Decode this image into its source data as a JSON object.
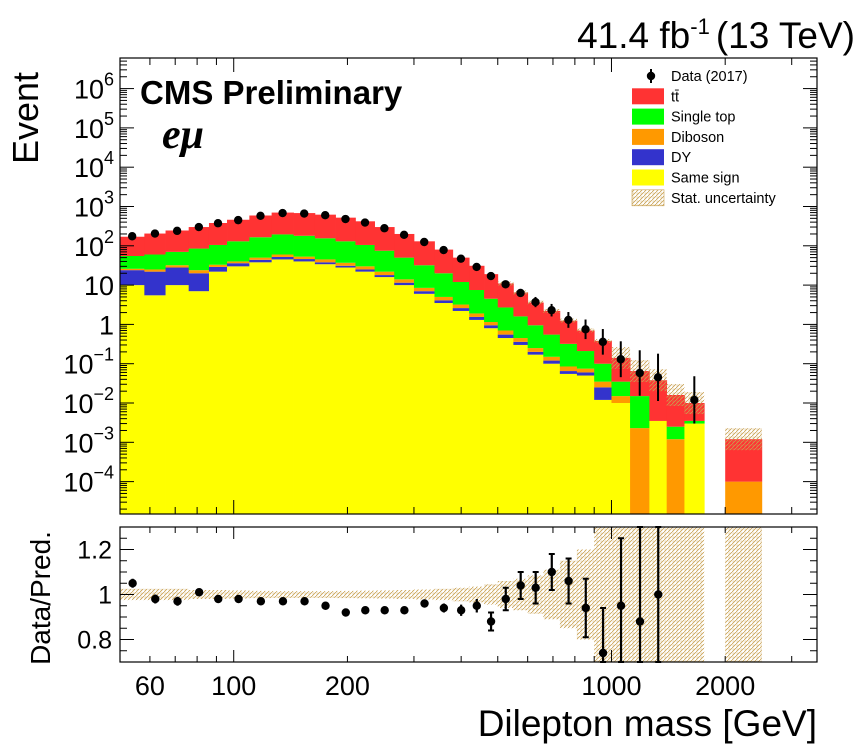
{
  "header": {
    "lumi_value": "41.4 fb",
    "lumi_exp": "-1",
    "lumi_energy": "(13 TeV)",
    "experiment": "CMS Preliminary",
    "channel": "eμ"
  },
  "colors": {
    "ttbar": "#ff3333",
    "single_top": "#00ff00",
    "diboson": "#ff9900",
    "dy": "#3333cc",
    "same_sign": "#ffff00",
    "uncertainty": "#c8a050",
    "data": "#000000"
  },
  "chart_data": [
    {
      "type": "bar",
      "subtype": "stacked-histogram",
      "xlabel": "",
      "ylabel": "Event",
      "xscale": "log",
      "yscale": "log",
      "xlim": [
        50,
        3500
      ],
      "ylim": [
        1.5e-05,
        6000000
      ],
      "xticks": [
        {
          "value": 60,
          "label": "60"
        },
        {
          "value": 100,
          "label": "100"
        },
        {
          "value": 200,
          "label": "200"
        },
        {
          "value": 1000,
          "label": "1000"
        },
        {
          "value": 2000,
          "label": "2000"
        }
      ],
      "yticks": [
        {
          "value": 0.0001,
          "base": "10",
          "exp": "−4"
        },
        {
          "value": 0.001,
          "base": "10",
          "exp": "−3"
        },
        {
          "value": 0.01,
          "base": "10",
          "exp": "−2"
        },
        {
          "value": 0.1,
          "base": "10",
          "exp": "−1"
        },
        {
          "value": 1,
          "base": "1",
          "exp": ""
        },
        {
          "value": 10,
          "base": "10",
          "exp": ""
        },
        {
          "value": 100,
          "base": "10",
          "exp": "2"
        },
        {
          "value": 1000,
          "base": "10",
          "exp": "3"
        },
        {
          "value": 10000,
          "base": "10",
          "exp": "4"
        },
        {
          "value": 100000,
          "base": "10",
          "exp": "5"
        },
        {
          "value": 1000000,
          "base": "10",
          "exp": "6"
        }
      ],
      "legend": {
        "placement": "top-right",
        "entries": [
          {
            "label": "Data (2017)",
            "style": "marker",
            "color": "#000000"
          },
          {
            "label": "tt̄",
            "style": "fill",
            "color": "#ff3333"
          },
          {
            "label": "Single top",
            "style": "fill",
            "color": "#00ff00"
          },
          {
            "label": "Diboson",
            "style": "fill",
            "color": "#ff9900"
          },
          {
            "label": "DY",
            "style": "fill",
            "color": "#3333cc"
          },
          {
            "label": "Same sign",
            "style": "fill",
            "color": "#ffff00"
          },
          {
            "label": "Stat. uncertainty",
            "style": "hatch",
            "color": "#c8a050"
          }
        ]
      },
      "bins": [
        {
          "lo": 50,
          "hi": 58,
          "same_sign": 10,
          "dy": 24,
          "diboson": 26,
          "single_top": 55,
          "ttbar": 170,
          "data": 175
        },
        {
          "lo": 58,
          "hi": 66,
          "same_sign": 5.5,
          "dy": 22,
          "diboson": 25,
          "single_top": 60,
          "ttbar": 205,
          "data": 205
        },
        {
          "lo": 66,
          "hi": 76,
          "same_sign": 10,
          "dy": 28,
          "diboson": 32,
          "single_top": 70,
          "ttbar": 245,
          "data": 240
        },
        {
          "lo": 76,
          "hi": 86,
          "same_sign": 7,
          "dy": 20,
          "diboson": 24,
          "single_top": 85,
          "ttbar": 300,
          "data": 300
        },
        {
          "lo": 86,
          "hi": 96,
          "same_sign": 22,
          "dy": 29,
          "diboson": 33,
          "single_top": 105,
          "ttbar": 380,
          "data": 375
        },
        {
          "lo": 96,
          "hi": 110,
          "same_sign": 30,
          "dy": 36,
          "diboson": 40,
          "single_top": 130,
          "ttbar": 460,
          "data": 450
        },
        {
          "lo": 110,
          "hi": 126,
          "same_sign": 38,
          "dy": 44,
          "diboson": 50,
          "single_top": 165,
          "ttbar": 590,
          "data": 580
        },
        {
          "lo": 126,
          "hi": 144,
          "same_sign": 45,
          "dy": 52,
          "diboson": 60,
          "single_top": 195,
          "ttbar": 700,
          "data": 680
        },
        {
          "lo": 144,
          "hi": 164,
          "same_sign": 40,
          "dy": 46,
          "diboson": 53,
          "single_top": 180,
          "ttbar": 680,
          "data": 660
        },
        {
          "lo": 164,
          "hi": 186,
          "same_sign": 34,
          "dy": 38,
          "diboson": 45,
          "single_top": 155,
          "ttbar": 620,
          "data": 600
        },
        {
          "lo": 186,
          "hi": 210,
          "same_sign": 28,
          "dy": 31,
          "diboson": 37,
          "single_top": 130,
          "ttbar": 520,
          "data": 480
        },
        {
          "lo": 210,
          "hi": 236,
          "same_sign": 22,
          "dy": 25,
          "diboson": 30,
          "single_top": 105,
          "ttbar": 420,
          "data": 390
        },
        {
          "lo": 236,
          "hi": 266,
          "same_sign": 16,
          "dy": 18,
          "diboson": 22,
          "single_top": 75,
          "ttbar": 300,
          "data": 280
        },
        {
          "lo": 266,
          "hi": 300,
          "same_sign": 10,
          "dy": 11.5,
          "diboson": 14,
          "single_top": 50,
          "ttbar": 200,
          "data": 190
        },
        {
          "lo": 300,
          "hi": 340,
          "same_sign": 6,
          "dy": 7,
          "diboson": 8.5,
          "single_top": 32,
          "ttbar": 130,
          "data": 125
        },
        {
          "lo": 340,
          "hi": 380,
          "same_sign": 3.5,
          "dy": 4.1,
          "diboson": 5,
          "single_top": 20,
          "ttbar": 80,
          "data": 78
        },
        {
          "lo": 380,
          "hi": 420,
          "same_sign": 2.2,
          "dy": 2.6,
          "diboson": 3.2,
          "single_top": 12,
          "ttbar": 50,
          "data": 47
        },
        {
          "lo": 420,
          "hi": 460,
          "same_sign": 1.3,
          "dy": 1.55,
          "diboson": 1.9,
          "single_top": 7.5,
          "ttbar": 31,
          "data": 29
        },
        {
          "lo": 460,
          "hi": 500,
          "same_sign": 0.8,
          "dy": 0.95,
          "diboson": 1.15,
          "single_top": 4.5,
          "ttbar": 19,
          "data": 17
        },
        {
          "lo": 500,
          "hi": 550,
          "same_sign": 0.45,
          "dy": 0.55,
          "diboson": 0.7,
          "single_top": 2.7,
          "ttbar": 11,
          "data": 10.5
        },
        {
          "lo": 550,
          "hi": 600,
          "same_sign": 0.3,
          "dy": 0.36,
          "diboson": 0.45,
          "single_top": 1.6,
          "ttbar": 6.5,
          "data": 6.3
        },
        {
          "lo": 600,
          "hi": 660,
          "same_sign": 0.17,
          "dy": 0.2,
          "diboson": 0.25,
          "single_top": 0.95,
          "ttbar": 3.6,
          "data": 3.7
        },
        {
          "lo": 660,
          "hi": 730,
          "same_sign": 0.1,
          "dy": 0.12,
          "diboson": 0.15,
          "single_top": 0.55,
          "ttbar": 2.2,
          "data": 2.3
        },
        {
          "lo": 730,
          "hi": 810,
          "same_sign": 0.055,
          "dy": 0.065,
          "diboson": 0.085,
          "single_top": 0.32,
          "ttbar": 1.25,
          "data": 1.3
        },
        {
          "lo": 810,
          "hi": 900,
          "same_sign": 0.05,
          "dy": 0.06,
          "diboson": 0.075,
          "single_top": 0.21,
          "ttbar": 0.7,
          "data": 0.75
        },
        {
          "lo": 900,
          "hi": 1000,
          "same_sign": 0.012,
          "dy": 0.025,
          "diboson": 0.035,
          "single_top": 0.1,
          "ttbar": 0.38,
          "data": 0.36
        },
        {
          "lo": 1000,
          "hi": 1120,
          "same_sign": 0.01,
          "dy": 0.01,
          "diboson": 0.015,
          "single_top": 0.035,
          "ttbar": 0.14,
          "data": 0.13
        },
        {
          "lo": 1120,
          "hi": 1260,
          "same_sign": 0,
          "dy": 0,
          "diboson": 0.0023,
          "single_top": 0.015,
          "ttbar": 0.065,
          "data": 0.058
        },
        {
          "lo": 1260,
          "hi": 1400,
          "same_sign": 0.0035,
          "dy": 0.0035,
          "diboson": 0.0035,
          "single_top": 0.0035,
          "ttbar": 0.038,
          "data": 0.045
        },
        {
          "lo": 1400,
          "hi": 1560,
          "same_sign": 0,
          "dy": 0,
          "diboson": 0.0012,
          "single_top": 0.0025,
          "ttbar": 0.016,
          "data": null
        },
        {
          "lo": 1560,
          "hi": 1760,
          "same_sign": 0.003,
          "dy": 0.003,
          "diboson": 0.003,
          "single_top": 0.0035,
          "ttbar": 0.01,
          "data": 0.012
        },
        {
          "lo": 1760,
          "hi": 2000,
          "same_sign": 0,
          "dy": 0,
          "diboson": 0,
          "single_top": 0,
          "ttbar": 0,
          "data": null
        },
        {
          "lo": 2000,
          "hi": 2500,
          "same_sign": 0,
          "dy": 0,
          "diboson": 0.0001,
          "single_top": 0.0001,
          "ttbar": 0.0012,
          "data": null
        },
        {
          "lo": 2500,
          "hi": 3500,
          "same_sign": 0,
          "dy": 0,
          "diboson": 0,
          "single_top": 0,
          "ttbar": 0,
          "data": null
        }
      ]
    },
    {
      "type": "scatter",
      "subtype": "ratio",
      "xlabel": "Dilepton mass [GeV]",
      "ylabel": "Data/Pred.",
      "xscale": "log",
      "xlim": [
        50,
        3500
      ],
      "ylim": [
        0.7,
        1.3
      ],
      "yticks": [
        {
          "value": 0.8,
          "label": "0.8"
        },
        {
          "value": 1.0,
          "label": "1"
        },
        {
          "value": 1.2,
          "label": "1.2"
        }
      ],
      "points": [
        {
          "x": 54,
          "y": 1.05,
          "err": 0.02,
          "unc": 0.025
        },
        {
          "x": 62,
          "y": 0.98,
          "err": 0.02,
          "unc": 0.025
        },
        {
          "x": 71,
          "y": 0.97,
          "err": 0.02,
          "unc": 0.025
        },
        {
          "x": 81,
          "y": 1.01,
          "err": 0.015,
          "unc": 0.02
        },
        {
          "x": 91,
          "y": 0.98,
          "err": 0.012,
          "unc": 0.02
        },
        {
          "x": 103,
          "y": 0.98,
          "err": 0.01,
          "unc": 0.018
        },
        {
          "x": 118,
          "y": 0.97,
          "err": 0.008,
          "unc": 0.016
        },
        {
          "x": 135,
          "y": 0.97,
          "err": 0.008,
          "unc": 0.015
        },
        {
          "x": 154,
          "y": 0.97,
          "err": 0.008,
          "unc": 0.015
        },
        {
          "x": 175,
          "y": 0.95,
          "err": 0.008,
          "unc": 0.015
        },
        {
          "x": 198,
          "y": 0.92,
          "err": 0.01,
          "unc": 0.016
        },
        {
          "x": 223,
          "y": 0.93,
          "err": 0.01,
          "unc": 0.017
        },
        {
          "x": 251,
          "y": 0.93,
          "err": 0.012,
          "unc": 0.018
        },
        {
          "x": 283,
          "y": 0.93,
          "err": 0.014,
          "unc": 0.02
        },
        {
          "x": 320,
          "y": 0.96,
          "err": 0.016,
          "unc": 0.022
        },
        {
          "x": 360,
          "y": 0.94,
          "err": 0.02,
          "unc": 0.025
        },
        {
          "x": 400,
          "y": 0.93,
          "err": 0.025,
          "unc": 0.03
        },
        {
          "x": 440,
          "y": 0.95,
          "err": 0.03,
          "unc": 0.035
        },
        {
          "x": 480,
          "y": 0.88,
          "err": 0.04,
          "unc": 0.045
        },
        {
          "x": 525,
          "y": 0.98,
          "err": 0.05,
          "unc": 0.06
        },
        {
          "x": 575,
          "y": 1.04,
          "err": 0.06,
          "unc": 0.07
        },
        {
          "x": 630,
          "y": 1.03,
          "err": 0.07,
          "unc": 0.085
        },
        {
          "x": 695,
          "y": 1.1,
          "err": 0.08,
          "unc": 0.11
        },
        {
          "x": 770,
          "y": 1.06,
          "err": 0.1,
          "unc": 0.15
        },
        {
          "x": 855,
          "y": 0.94,
          "err": 0.13,
          "unc": 0.2
        },
        {
          "x": 950,
          "y": 0.74,
          "err": 0.2,
          "unc": 0.3
        },
        {
          "x": 1060,
          "y": 0.95,
          "err": 0.3,
          "unc": 0.4
        },
        {
          "x": 1190,
          "y": 0.88,
          "err": 0.42,
          "unc": 0.45
        },
        {
          "x": 1330,
          "y": 1.0,
          "err": 0.52,
          "unc": 0.45
        },
        {
          "x": 1480,
          "y": null,
          "err": 0,
          "unc": 0.45
        },
        {
          "x": 1660,
          "y": null,
          "err": 0,
          "unc": 0.45
        },
        {
          "x": 2250,
          "y": null,
          "err": 0,
          "unc": 0.45
        }
      ]
    }
  ]
}
